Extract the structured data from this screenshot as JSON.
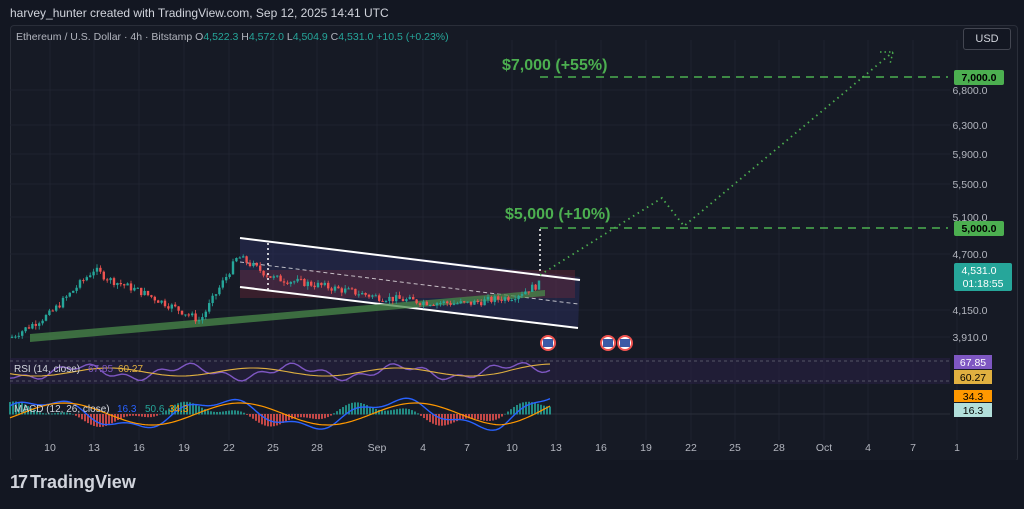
{
  "header": {
    "attribution": "harvey_hunter created with TradingView.com, Sep 12, 2025 14:41 UTC"
  },
  "legend": {
    "symbol": "Ethereum / U.S. Dollar · 4h · Bitstamp",
    "open_label": "O",
    "open": "4,522.3",
    "high_label": "H",
    "high": "4,572.0",
    "low_label": "L",
    "low": "4,504.9",
    "close_label": "C",
    "close": "4,531.0",
    "change": "+10.5 (+0.23%)"
  },
  "currency_button": "USD",
  "annotations": {
    "target_high": "$7,000 (+55%)",
    "target_mid": "$5,000 (+10%)"
  },
  "price_axis": {
    "ticks": [
      "6,800.0",
      "6,300.0",
      "5,900.0",
      "5,500.0",
      "5,100.0",
      "4,700.0",
      "4,150.0",
      "3,910.0"
    ],
    "tags": {
      "target_high": "7,000.0",
      "target_mid": "5,000.0",
      "last_price": "4,531.0",
      "countdown": "01:18:55"
    }
  },
  "rsi": {
    "label": "RSI (14, close)",
    "value1": "67.85",
    "value2": "60.27",
    "tag1": "67.85",
    "tag2": "60.27"
  },
  "macd": {
    "label": "MACD (12, 26, close)",
    "value1": "16.3",
    "value2": "50.6",
    "value3": "34.3",
    "tag1": "34.3",
    "tag2": "16.3"
  },
  "time_axis": [
    "10",
    "13",
    "16",
    "19",
    "22",
    "25",
    "28",
    "Sep",
    "4",
    "7",
    "10",
    "13",
    "16",
    "19",
    "22",
    "25",
    "28",
    "Oct",
    "4",
    "7",
    "1"
  ],
  "brand": {
    "name": "TradingView"
  },
  "colors": {
    "up": "#26a69a",
    "down": "#ef5350",
    "target": "#4caf50",
    "rsi": "#7e57c2",
    "macd": "#2962ff",
    "signal": "#ff9800"
  },
  "chart_data": {
    "type": "candlestick",
    "symbol": "Ethereum / U.S. Dollar",
    "interval": "4h",
    "y_range": [
      3850,
      7250
    ],
    "close_path_approx": [
      {
        "x": "Aug 8",
        "y": 3900
      },
      {
        "x": "Aug 10",
        "y": 4180
      },
      {
        "x": "Aug 13",
        "y": 4700
      },
      {
        "x": "Aug 14",
        "y": 4580
      },
      {
        "x": "Aug 16",
        "y": 4450
      },
      {
        "x": "Aug 19",
        "y": 4200
      },
      {
        "x": "Aug 20",
        "y": 4100
      },
      {
        "x": "Aug 22",
        "y": 4850
      },
      {
        "x": "Aug 25",
        "y": 4600
      },
      {
        "x": "Aug 28",
        "y": 4520
      },
      {
        "x": "Sep 1",
        "y": 4380
      },
      {
        "x": "Sep 4",
        "y": 4320
      },
      {
        "x": "Sep 7",
        "y": 4300
      },
      {
        "x": "Sep 10",
        "y": 4380
      },
      {
        "x": "Sep 12",
        "y": 4531
      }
    ],
    "targets": [
      7000,
      5000
    ],
    "last_price": 4531
  }
}
